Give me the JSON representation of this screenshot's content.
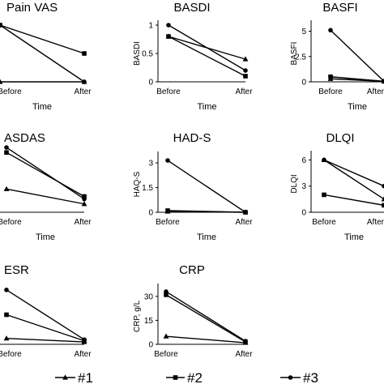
{
  "chart_data": [
    {
      "type": "line",
      "title": "Pain VAS",
      "xlabel": "Time",
      "ylabel": "",
      "categories": [
        "Before",
        "After"
      ],
      "yticks": [],
      "ylim": [
        0,
        10
      ],
      "series": [
        {
          "name": "#1",
          "values": [
            0,
            0
          ]
        },
        {
          "name": "#2",
          "values": [
            10,
            5
          ]
        },
        {
          "name": "#3",
          "values": [
            10,
            0
          ]
        }
      ]
    },
    {
      "type": "line",
      "title": "BASDI",
      "xlabel": "Time",
      "ylabel": "BASDI",
      "categories": [
        "Before",
        "After"
      ],
      "yticks": [
        "0",
        "0.5",
        "1"
      ],
      "ylim": [
        0,
        1
      ],
      "series": [
        {
          "name": "#1",
          "values": [
            0.8,
            0.4
          ]
        },
        {
          "name": "#2",
          "values": [
            0.8,
            0.1
          ]
        },
        {
          "name": "#3",
          "values": [
            1.0,
            0.2
          ]
        }
      ]
    },
    {
      "type": "line",
      "title": "BASFI",
      "xlabel": "Time",
      "ylabel": "BASFI",
      "categories": [
        "Before",
        "After"
      ],
      "yticks": [
        "0",
        "2.5",
        "5"
      ],
      "ylim": [
        0,
        5.6
      ],
      "series": [
        {
          "name": "#1",
          "values": [
            0.3,
            0.05
          ]
        },
        {
          "name": "#2",
          "values": [
            0.5,
            0.05
          ]
        },
        {
          "name": "#3",
          "values": [
            5.1,
            0.05
          ]
        }
      ]
    },
    {
      "type": "line",
      "title": "ASDAS",
      "xlabel": "Time",
      "ylabel": "",
      "categories": [
        "Before",
        "After"
      ],
      "yticks": [],
      "ylim": [
        0,
        4
      ],
      "series": [
        {
          "name": "#1",
          "values": [
            1.4,
            0.5
          ]
        },
        {
          "name": "#2",
          "values": [
            3.6,
            0.95
          ]
        },
        {
          "name": "#3",
          "values": [
            3.9,
            0.8
          ]
        }
      ]
    },
    {
      "type": "line",
      "title": "HAD-S",
      "xlabel": "Time",
      "ylabel": "HAQ-S",
      "categories": [
        "Before",
        "After"
      ],
      "yticks": [
        "0",
        "1.5",
        "3"
      ],
      "ylim": [
        0,
        3.4
      ],
      "series": [
        {
          "name": "#1",
          "values": [
            0.05,
            0.0
          ]
        },
        {
          "name": "#2",
          "values": [
            0.1,
            0.0
          ]
        },
        {
          "name": "#3",
          "values": [
            3.15,
            0.0
          ]
        }
      ]
    },
    {
      "type": "line",
      "title": "DLQI",
      "xlabel": "Time",
      "ylabel": "DLQI",
      "categories": [
        "Before",
        "After"
      ],
      "yticks": [
        "0",
        "3",
        "6"
      ],
      "ylim": [
        0,
        6.5
      ],
      "series": [
        {
          "name": "#1",
          "values": [
            6,
            1.5
          ]
        },
        {
          "name": "#2",
          "values": [
            2,
            0.8
          ]
        },
        {
          "name": "#3",
          "values": [
            6,
            3
          ]
        }
      ]
    },
    {
      "type": "line",
      "title": "ESR",
      "xlabel": "",
      "ylabel": "",
      "categories": [
        "Before",
        "After"
      ],
      "yticks": [],
      "ylim": [
        0,
        50
      ],
      "series": [
        {
          "name": "#1",
          "values": [
            5,
            2
          ]
        },
        {
          "name": "#2",
          "values": [
            25,
            3
          ]
        },
        {
          "name": "#3",
          "values": [
            46,
            4
          ]
        }
      ]
    },
    {
      "type": "line",
      "title": "CRP",
      "xlabel": "",
      "ylabel": "CRP, g/L",
      "categories": [
        "Before",
        "After"
      ],
      "yticks": [
        "0",
        "15",
        "30"
      ],
      "ylim": [
        0,
        35
      ],
      "series": [
        {
          "name": "#1",
          "values": [
            5,
            1
          ]
        },
        {
          "name": "#2",
          "values": [
            31,
            1.5
          ]
        },
        {
          "name": "#3",
          "values": [
            33,
            2
          ]
        }
      ]
    }
  ],
  "legend": {
    "placement": "bottom",
    "items": [
      {
        "label": "#1",
        "marker": "triangle"
      },
      {
        "label": "#2",
        "marker": "square"
      },
      {
        "label": "#3",
        "marker": "circle"
      }
    ]
  }
}
